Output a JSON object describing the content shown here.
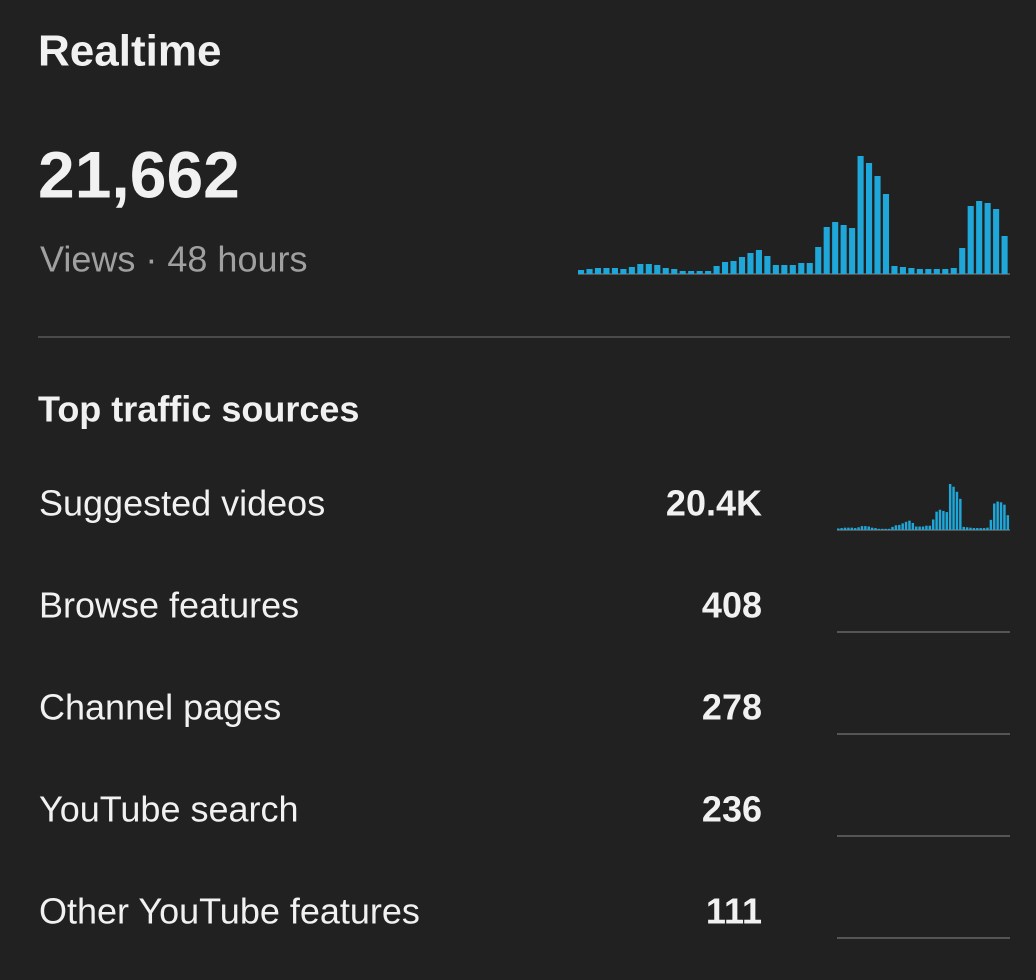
{
  "header": {
    "title": "Realtime"
  },
  "summary": {
    "views": "21,662",
    "caption": "Views · 48 hours",
    "hourly_views": [
      68,
      85,
      102,
      102,
      102,
      85,
      119,
      170,
      170,
      153,
      102,
      85,
      51,
      51,
      51,
      51,
      136,
      204,
      221,
      289,
      357,
      408,
      306,
      153,
      153,
      153,
      187,
      187,
      459,
      799,
      884,
      833,
      782,
      2006,
      1887,
      1666,
      1360,
      136,
      119,
      102,
      85,
      85,
      85,
      85,
      102,
      442,
      1156,
      1241,
      1207,
      1105,
      646
    ]
  },
  "traffic": {
    "title": "Top traffic sources",
    "rows": [
      {
        "source": "Suggested videos",
        "views": "20.4K",
        "hourly_views": [
          64,
          80,
          96,
          96,
          96,
          80,
          112,
          160,
          160,
          144,
          96,
          80,
          48,
          48,
          48,
          48,
          128,
          192,
          208,
          272,
          336,
          384,
          288,
          144,
          144,
          144,
          176,
          176,
          432,
          752,
          832,
          784,
          736,
          1888,
          1776,
          1568,
          1280,
          128,
          112,
          96,
          80,
          80,
          80,
          80,
          96,
          416,
          1088,
          1168,
          1136,
          1040,
          608
        ]
      },
      {
        "source": "Browse features",
        "views": "408"
      },
      {
        "source": "Channel pages",
        "views": "278"
      },
      {
        "source": "YouTube search",
        "views": "236"
      },
      {
        "source": "Other YouTube features",
        "views": "111"
      }
    ]
  }
}
